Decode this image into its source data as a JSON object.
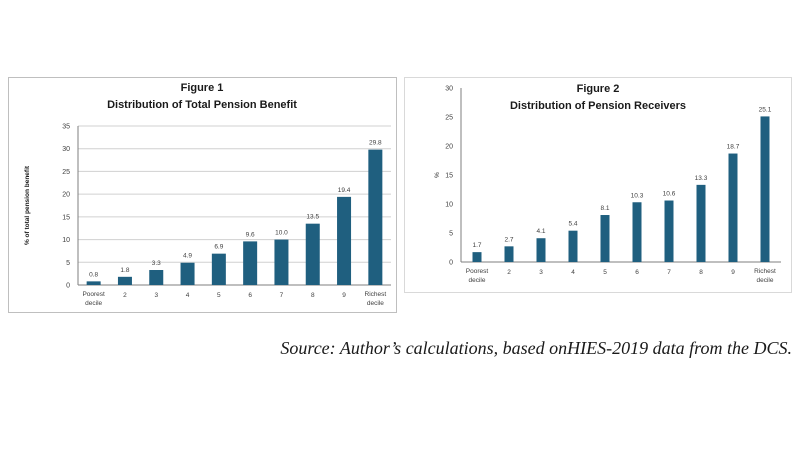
{
  "colors": {
    "bar": "#1f5f7f",
    "grid": "#d0d0d0",
    "axis": "#7f7f7f",
    "text": "#1a1a1a",
    "tick": "#404040"
  },
  "chart_data": [
    {
      "type": "bar",
      "title": "Figure 1",
      "subtitle": "Distribution of Total Pension Benefit",
      "xlabel": "",
      "ylabel": "% of total pension benefit",
      "categories": [
        "Poorest decile",
        "2",
        "3",
        "4",
        "5",
        "6",
        "7",
        "8",
        "9",
        "Richest decile"
      ],
      "values": [
        0.8,
        1.8,
        3.3,
        4.9,
        6.9,
        9.6,
        10.0,
        13.5,
        19.4,
        29.8
      ],
      "value_labels": [
        "0.8",
        "1.8",
        "3.3",
        "4.9",
        "6.9",
        "9.6",
        "10.0",
        "13.5",
        "19.4",
        "29.8"
      ],
      "ylim": [
        0,
        35
      ],
      "yticks": [
        0,
        5,
        10,
        15,
        20,
        25,
        30,
        35
      ],
      "grid": true
    },
    {
      "type": "bar",
      "title": "Figure 2",
      "subtitle": "Distribution of Pension Receivers",
      "xlabel": "",
      "ylabel": "%",
      "categories": [
        "Poorest decile",
        "2",
        "3",
        "4",
        "5",
        "6",
        "7",
        "8",
        "9",
        "Richest decile"
      ],
      "values": [
        1.7,
        2.7,
        4.1,
        5.4,
        8.1,
        10.3,
        10.6,
        13.3,
        18.7,
        25.1
      ],
      "value_labels": [
        "1.7",
        "2.7",
        "4.1",
        "5.4",
        "8.1",
        "10.3",
        "10.6",
        "13.3",
        "18.7",
        "25.1"
      ],
      "ylim": [
        0,
        30
      ],
      "yticks": [
        0,
        5,
        10,
        15,
        20,
        25,
        30
      ],
      "grid": false
    }
  ],
  "source_note": "Source: Author’s calculations, based onHIES-2019 data from the DCS."
}
